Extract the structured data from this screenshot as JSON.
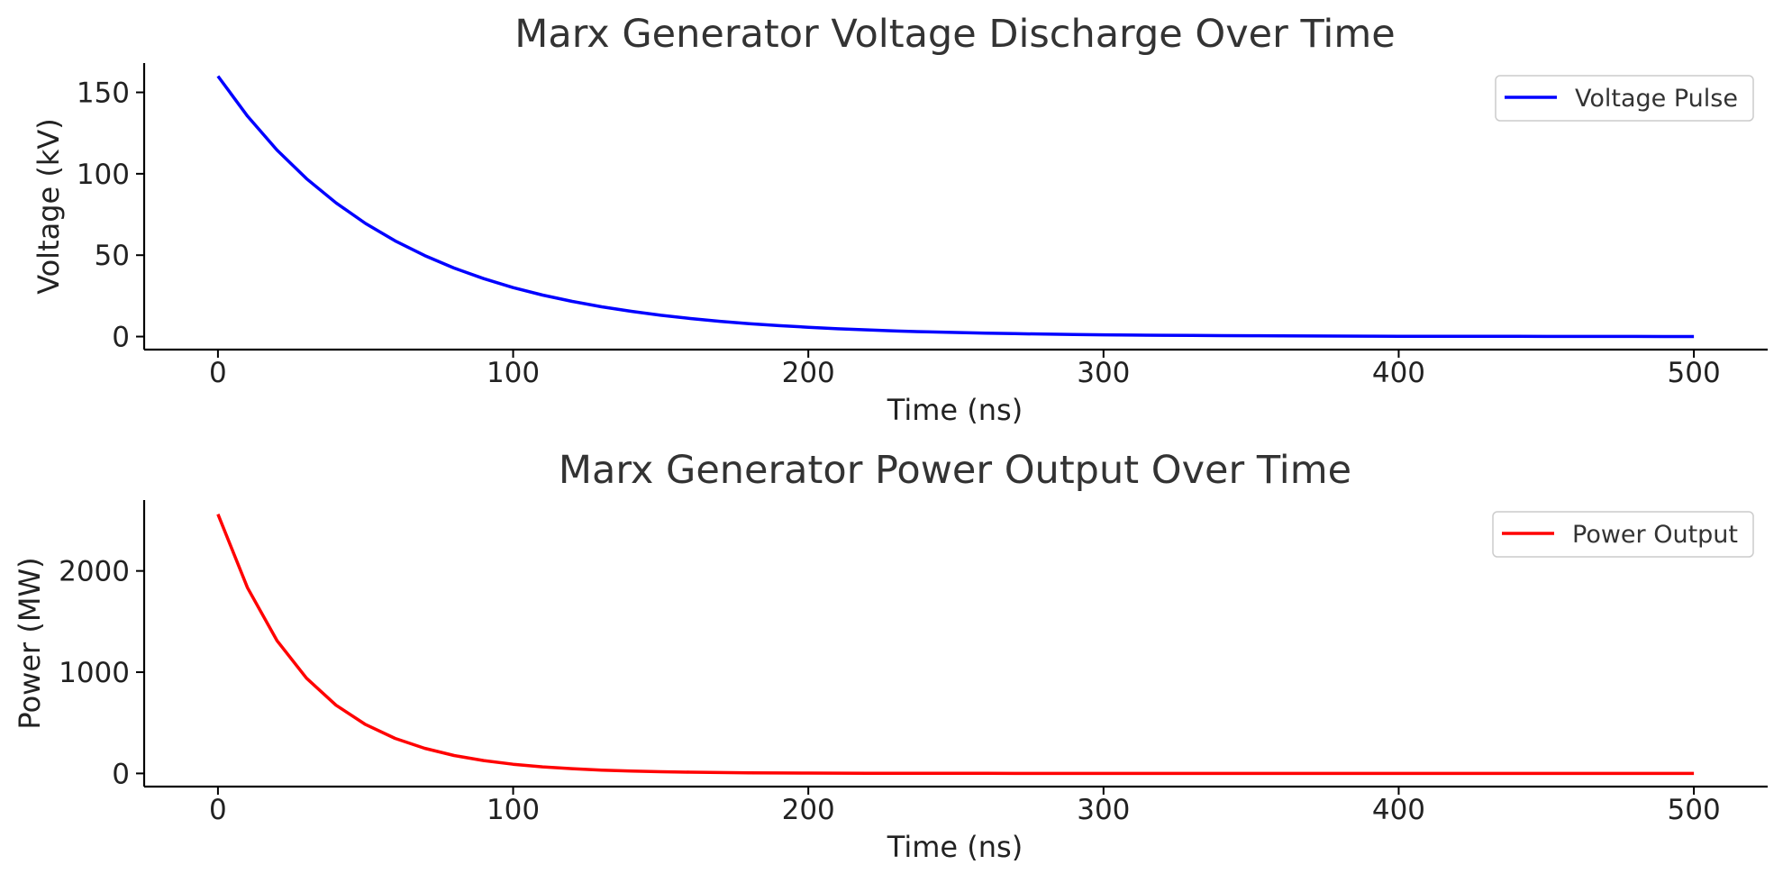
{
  "chart_data": [
    {
      "type": "line",
      "title": "Marx Generator Voltage Discharge Over Time",
      "xlabel": "Time (ns)",
      "ylabel": "Voltage (kV)",
      "xlim": [
        -25,
        525
      ],
      "ylim": [
        -8,
        168
      ],
      "xticks": [
        0,
        100,
        200,
        300,
        400,
        500
      ],
      "xtick_labels": [
        "0",
        "100",
        "200",
        "300",
        "400",
        "500"
      ],
      "yticks": [
        0,
        50,
        100,
        150
      ],
      "ytick_labels": [
        "0",
        "50",
        "100",
        "150"
      ],
      "grid": false,
      "legend_position": "top-right",
      "series": [
        {
          "name": "Voltage Pulse",
          "color": "#0000ff",
          "x": [
            0,
            10,
            20,
            30,
            40,
            50,
            60,
            70,
            80,
            90,
            100,
            110,
            120,
            130,
            140,
            150,
            160,
            170,
            180,
            190,
            200,
            210,
            220,
            230,
            240,
            250,
            260,
            270,
            280,
            290,
            300,
            310,
            320,
            330,
            340,
            350,
            360,
            370,
            380,
            390,
            400,
            410,
            420,
            430,
            440,
            450,
            460,
            470,
            480,
            490,
            500
          ],
          "y": [
            160.0,
            135.4,
            114.6,
            97.0,
            82.1,
            69.5,
            58.8,
            49.8,
            42.1,
            35.6,
            30.1,
            25.5,
            21.6,
            18.3,
            15.5,
            13.1,
            11.1,
            9.4,
            7.9,
            6.7,
            5.7,
            4.8,
            4.1,
            3.4,
            2.9,
            2.5,
            2.1,
            1.8,
            1.5,
            1.3,
            1.1,
            0.9,
            0.8,
            0.7,
            0.6,
            0.5,
            0.4,
            0.35,
            0.3,
            0.25,
            0.2,
            0.18,
            0.15,
            0.13,
            0.11,
            0.09,
            0.08,
            0.07,
            0.06,
            0.05,
            0.04
          ]
        }
      ]
    },
    {
      "type": "line",
      "title": "Marx Generator Power Output Over Time",
      "xlabel": "Time (ns)",
      "ylabel": "Power (MW)",
      "xlim": [
        -25,
        525
      ],
      "ylim": [
        -130,
        2700
      ],
      "xticks": [
        0,
        100,
        200,
        300,
        400,
        500
      ],
      "xtick_labels": [
        "0",
        "100",
        "200",
        "300",
        "400",
        "500"
      ],
      "yticks": [
        0,
        1000,
        2000
      ],
      "ytick_labels": [
        "0",
        "1000",
        "2000"
      ],
      "grid": false,
      "legend_position": "top-right",
      "series": [
        {
          "name": "Power Output",
          "color": "#ff0000",
          "x": [
            0,
            10,
            20,
            30,
            40,
            50,
            60,
            70,
            80,
            90,
            100,
            110,
            120,
            130,
            140,
            150,
            160,
            170,
            180,
            190,
            200,
            210,
            220,
            230,
            240,
            250,
            260,
            270,
            280,
            290,
            300,
            310,
            320,
            330,
            340,
            350,
            360,
            370,
            380,
            390,
            400,
            410,
            420,
            430,
            440,
            450,
            460,
            470,
            480,
            490,
            500
          ],
          "y": [
            2560,
            1834,
            1313,
            941,
            674,
            483,
            346,
            248,
            177,
            127,
            91,
            65,
            47,
            33,
            24,
            17,
            12,
            8.8,
            6.3,
            4.5,
            3.2,
            2.3,
            1.7,
            1.2,
            0.85,
            0.6,
            0.44,
            0.31,
            0.22,
            0.16,
            0.11,
            0.08,
            0.06,
            0.04,
            0.03,
            0.02,
            0.015,
            0.011,
            0.008,
            0.006,
            0.004,
            0.003,
            0.002,
            0.0015,
            0.001,
            0.0008,
            0.0006,
            0.0004,
            0.0003,
            0.0002,
            0.0002
          ]
        }
      ]
    }
  ]
}
